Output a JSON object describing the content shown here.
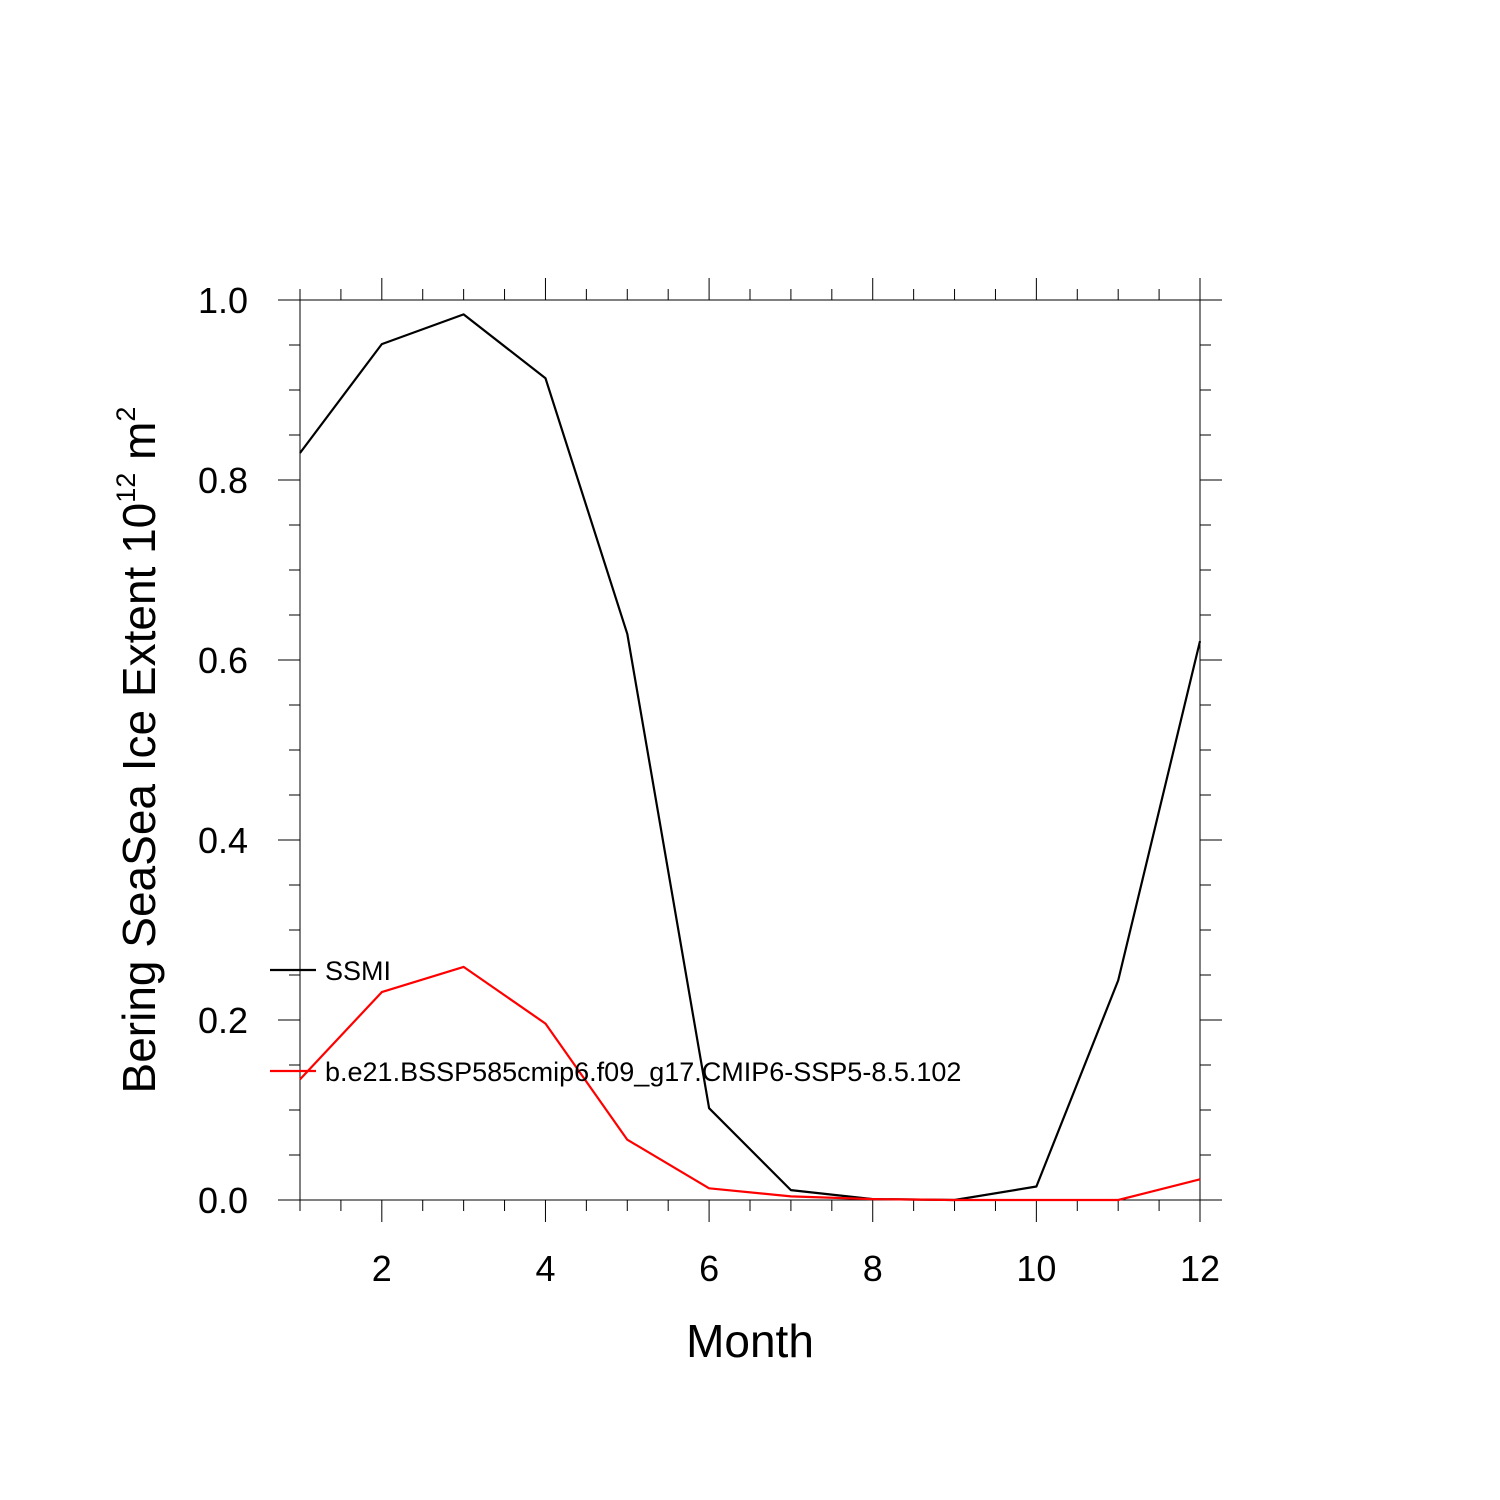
{
  "chart_data": {
    "type": "line",
    "title": "",
    "xlabel": "Month",
    "ylabel_text": "Bering SeaSea Ice Extent 10",
    "ylabel_exponent": "12",
    "ylabel_unit": " m",
    "ylabel_unit_exponent": "2",
    "xlim": [
      1,
      12
    ],
    "ylim": [
      0,
      1.0
    ],
    "x_ticks": [
      2,
      4,
      6,
      8,
      10,
      12
    ],
    "y_ticks": [
      0.0,
      0.2,
      0.4,
      0.6,
      0.8,
      1.0
    ],
    "y_tick_labels": [
      "0.0",
      "0.2",
      "0.4",
      "0.6",
      "0.8",
      "1.0"
    ],
    "x": [
      1,
      2,
      3,
      4,
      5,
      6,
      7,
      8,
      9,
      10,
      11,
      12
    ],
    "series": [
      {
        "name": "SSMI",
        "color": "#000000",
        "values": [
          0.83,
          0.951,
          0.984,
          0.913,
          0.629,
          0.102,
          0.011,
          0.001,
          0.0,
          0.015,
          0.244,
          0.621
        ]
      },
      {
        "name": "b.e21.BSSP585cmip6.f09_g17.CMIP6-SSP5-8.5.102",
        "color": "#ff0000",
        "values": [
          0.134,
          0.231,
          0.259,
          0.196,
          0.067,
          0.013,
          0.004,
          0.001,
          0.0,
          0.0,
          0.0,
          0.023
        ]
      }
    ],
    "legend_position": "lower-left inside"
  }
}
